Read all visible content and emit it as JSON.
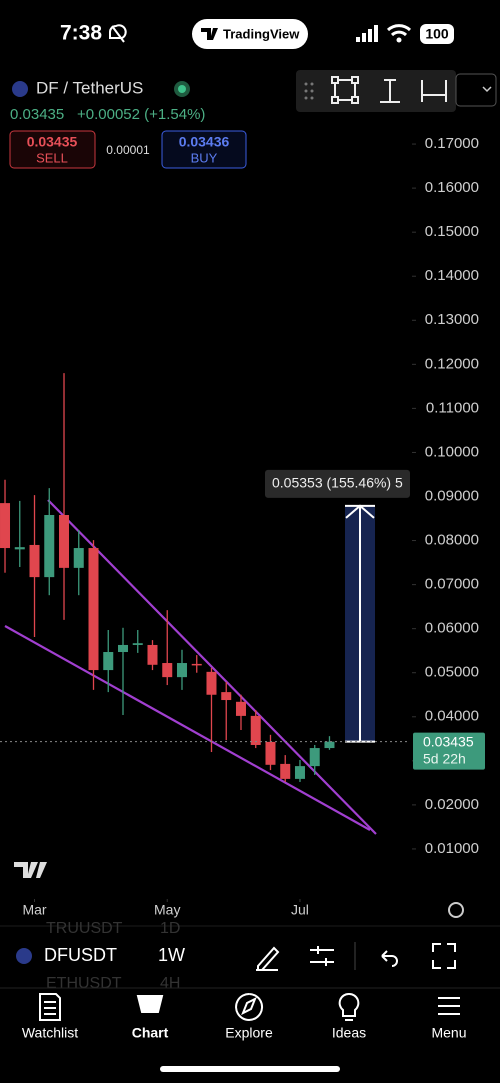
{
  "status_bar": {
    "time": "7:38",
    "app": "TradingView",
    "battery": "100"
  },
  "header": {
    "symbol": "DF / TetherUS",
    "price": "0.03435",
    "change": "+0.00052 (+1.54%)",
    "sell_price": "0.03435",
    "sell": "SELL",
    "spread": "0.00001",
    "buy_price": "0.03436",
    "buy": "BUY"
  },
  "chart_data": {
    "type": "candlestick",
    "up_color": "#3d9a7c",
    "down_color": "#e0464e",
    "series": {
      "open": [
        0.0885,
        0.078,
        0.079,
        0.0717,
        0.0858,
        0.0738,
        0.0783,
        0.0506,
        0.0547,
        0.0563,
        0.0563,
        0.0522,
        0.049,
        0.052,
        0.0502,
        0.0456,
        0.0434,
        0.0402,
        0.0343,
        0.0293,
        0.0259,
        0.0288,
        0.0329
      ],
      "high": [
        0.0938,
        0.089,
        0.0903,
        0.0919,
        0.118,
        0.0824,
        0.0801,
        0.0597,
        0.0602,
        0.0597,
        0.0574,
        0.0642,
        0.0552,
        0.054,
        0.0511,
        0.0479,
        0.045,
        0.0415,
        0.0359,
        0.0313,
        0.0302,
        0.0336,
        0.0356
      ],
      "low": [
        0.0727,
        0.074,
        0.0581,
        0.0676,
        0.062,
        0.0676,
        0.0461,
        0.0456,
        0.0404,
        0.0545,
        0.0506,
        0.0472,
        0.0461,
        0.05,
        0.032,
        0.0347,
        0.037,
        0.0329,
        0.0279,
        0.0252,
        0.0252,
        0.0268,
        0.0325
      ],
      "close": [
        0.0783,
        0.0785,
        0.0717,
        0.0858,
        0.0738,
        0.0783,
        0.0506,
        0.0547,
        0.0563,
        0.0567,
        0.0518,
        0.049,
        0.0522,
        0.0518,
        0.045,
        0.0438,
        0.0402,
        0.0336,
        0.0291,
        0.0259,
        0.0288,
        0.0329,
        0.03435
      ]
    },
    "ylim": [
      0,
      0.18
    ],
    "yticks": [
      {
        "value": 0.01,
        "label": "0.01000"
      },
      {
        "value": 0.02,
        "label": "0.02000"
      },
      {
        "value": 0.03,
        "label": "0.03000"
      },
      {
        "value": 0.04,
        "label": "0.04000"
      },
      {
        "value": 0.05,
        "label": "0.05000"
      },
      {
        "value": 0.06,
        "label": "0.06000"
      },
      {
        "value": 0.07,
        "label": "0.07000"
      },
      {
        "value": 0.08,
        "label": "0.08000"
      },
      {
        "value": 0.09,
        "label": "0.09000"
      },
      {
        "value": 0.1,
        "label": "0.10000"
      },
      {
        "value": 0.11,
        "label": "0.11000"
      },
      {
        "value": 0.12,
        "label": "0.12000"
      },
      {
        "value": 0.13,
        "label": "0.13000"
      },
      {
        "value": 0.14,
        "label": "0.14000"
      },
      {
        "value": 0.15,
        "label": "0.15000"
      },
      {
        "value": 0.16,
        "label": "0.16000"
      },
      {
        "value": 0.17,
        "label": "0.17000"
      }
    ],
    "xlim": [
      -0.34,
      27.46
    ],
    "xticks": [
      {
        "value": 2,
        "label": "Mar"
      },
      {
        "value": 11,
        "label": "May"
      },
      {
        "value": 20,
        "label": "Jul"
      }
    ],
    "last_price": {
      "value": 0.03435,
      "countdown": "5d 22h"
    },
    "measure": {
      "change": 0.05353,
      "label": "0.05353 (155.46%) 5"
    }
  },
  "symbol_bar": {
    "symbol": "DFUSDT",
    "interval": "1W",
    "behind": [
      "TRUUSDT",
      "1D",
      "ETHUSDT",
      "4H"
    ]
  },
  "nav": [
    "Watchlist",
    "Chart",
    "Explore",
    "Ideas",
    "Menu"
  ]
}
